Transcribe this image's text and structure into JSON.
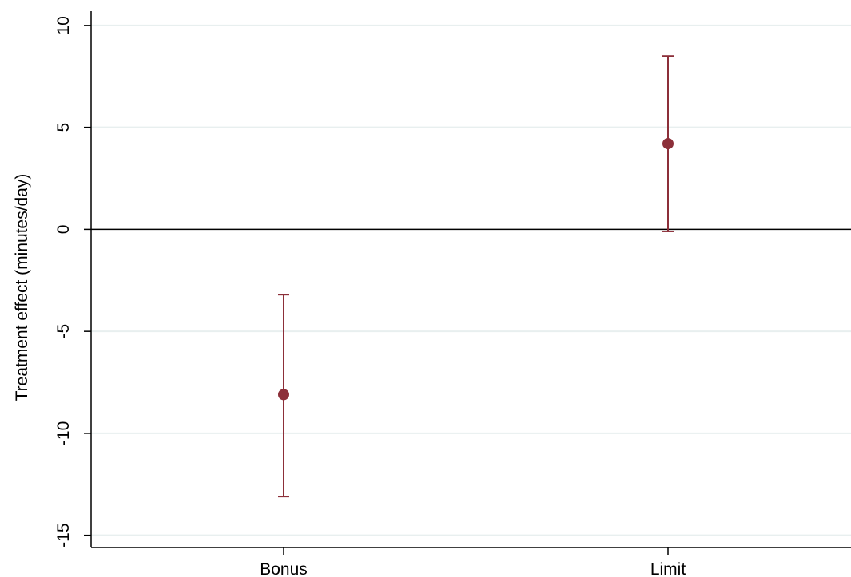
{
  "colors": {
    "background": "#ffffff",
    "gridline": "#e8efef",
    "axis": "#000000",
    "zero_line": "#000000",
    "marker": "#8c2f39",
    "error_bar": "#8c2f39"
  },
  "chart_data": {
    "type": "scatter",
    "title": "",
    "xlabel": "",
    "ylabel": "Treatment effect (minutes/day)",
    "categories": [
      "Bonus",
      "Limit"
    ],
    "series": [
      {
        "values": [
          -8.1,
          4.2
        ],
        "ci_lower": [
          -13.1,
          -0.1
        ],
        "ci_upper": [
          -3.2,
          8.5
        ]
      }
    ],
    "ylim": [
      -15.6,
      10.7
    ],
    "yticks": [
      -15,
      -10,
      -5,
      0,
      5,
      10
    ],
    "ytick_labels": [
      "-15",
      "-10",
      "-5",
      "0",
      "5",
      "10"
    ],
    "grid": true,
    "reference_line": 0,
    "legend": "none"
  }
}
